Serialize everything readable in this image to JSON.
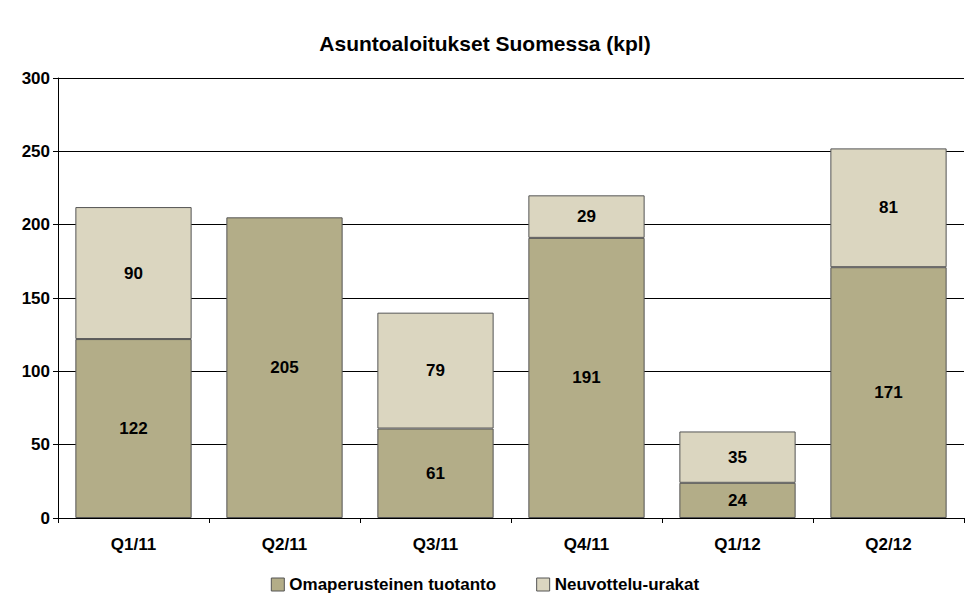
{
  "chart_data": {
    "type": "bar",
    "title": "Asuntoaloitukset Suomessa (kpl)",
    "categories": [
      "Q1/11",
      "Q2/11",
      "Q3/11",
      "Q4/11",
      "Q1/12",
      "Q2/12"
    ],
    "series": [
      {
        "name": "Omaperusteinen tuotanto",
        "color": "#b3ad88",
        "values": [
          122,
          205,
          61,
          191,
          24,
          171
        ]
      },
      {
        "name": "Neuvottelu-urakat",
        "color": "#dbd6c0",
        "values": [
          90,
          null,
          79,
          29,
          35,
          81
        ]
      }
    ],
    "stacked": true,
    "data_labels": true,
    "ylim": [
      0,
      300
    ],
    "yticks": [
      0,
      50,
      100,
      150,
      200,
      250,
      300
    ],
    "grid": true,
    "legend": "bottom"
  }
}
